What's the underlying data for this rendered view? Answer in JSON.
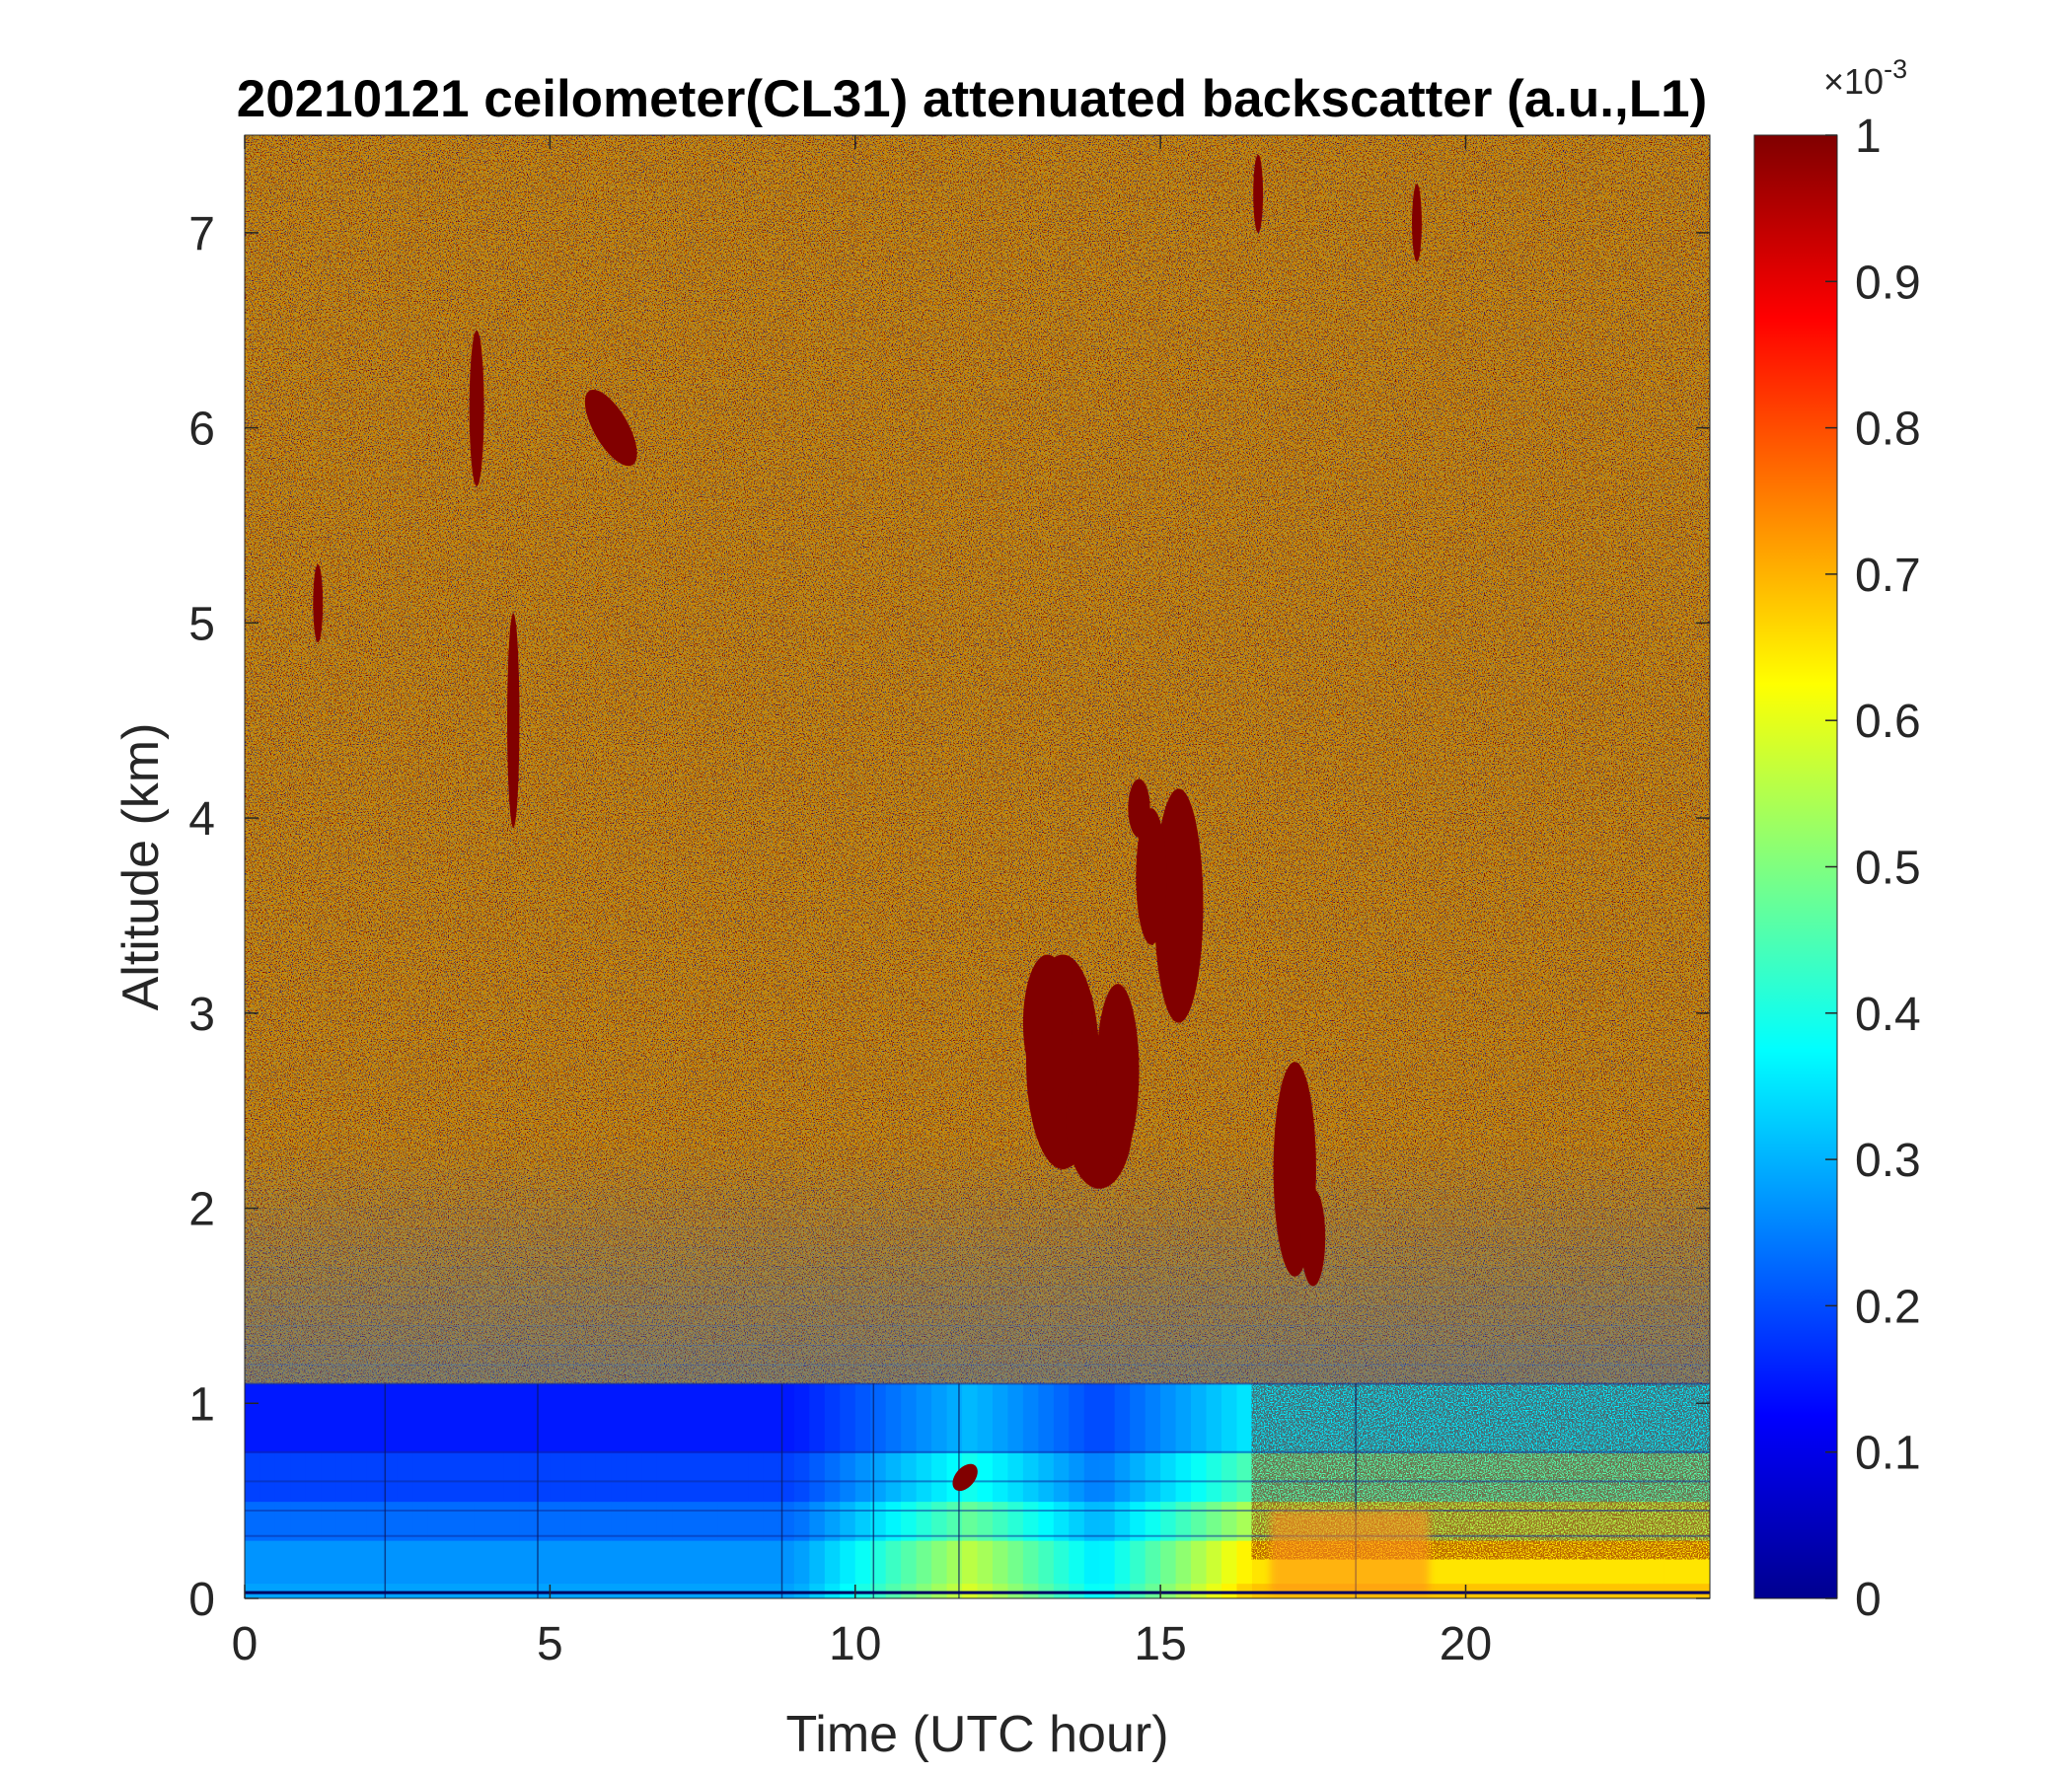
{
  "chart_data": {
    "type": "heatmap",
    "title": "20210121 ceilometer(CL31) attenuated backscatter (a.u.,L1)",
    "xlabel": "Time (UTC hour)",
    "ylabel": "Altitude (km)",
    "xlim": [
      0,
      24
    ],
    "ylim": [
      0,
      7.5
    ],
    "x_ticks": [
      0,
      5,
      10,
      15,
      20
    ],
    "y_ticks": [
      0,
      1,
      2,
      3,
      4,
      5,
      6,
      7
    ],
    "colorbar": {
      "colormap": "jet",
      "range": [
        0,
        1
      ],
      "ticks": [
        0,
        0.1,
        0.2,
        0.3,
        0.4,
        0.5,
        0.6,
        0.7,
        0.8,
        0.9,
        1
      ],
      "tick_labels": [
        "0",
        "0.1",
        "0.2",
        "0.3",
        "0.4",
        "0.5",
        "0.6",
        "0.7",
        "0.8",
        "0.9",
        "1"
      ],
      "exponent_label": "×10",
      "exponent": "-3"
    },
    "features": [
      {
        "name": "cloud",
        "time_range": [
          12.7,
          15.0
        ],
        "altitude_range": [
          2.1,
          3.3
        ],
        "value": 1
      },
      {
        "name": "cloud",
        "time_range": [
          14.5,
          15.9
        ],
        "altitude_range": [
          2.9,
          4.2
        ],
        "value": 1
      },
      {
        "name": "cloud",
        "time_range": [
          16.7,
          17.7
        ],
        "altitude_range": [
          1.6,
          2.9
        ],
        "value": 1
      },
      {
        "name": "cloud",
        "time_range": [
          5.6,
          6.6
        ],
        "altitude_range": [
          5.7,
          6.3
        ],
        "value": 1
      },
      {
        "name": "aerosol layer",
        "time_range": [
          0,
          24
        ],
        "altitude_range": [
          0,
          1.1
        ],
        "value": 0.3
      },
      {
        "name": "aerosol layer",
        "time_range": [
          10,
          12.5
        ],
        "altitude_range": [
          0,
          1.1
        ],
        "value": 0.6
      },
      {
        "name": "aerosol layer",
        "time_range": [
          16.5,
          24
        ],
        "altitude_range": [
          0,
          1.1
        ],
        "value": 0.65
      }
    ]
  }
}
